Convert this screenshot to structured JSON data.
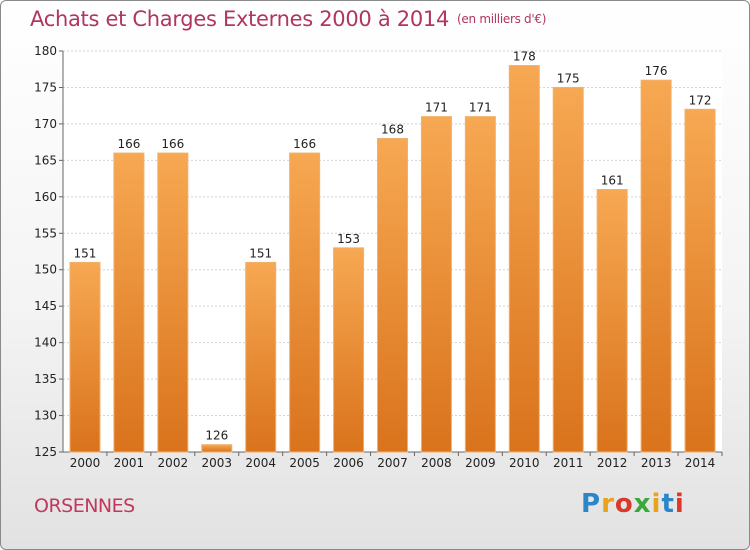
{
  "chart_data": {
    "type": "bar",
    "title": "Achats et Charges Externes 2000 à 2014",
    "unit_label": "(en milliers d'€)",
    "categories": [
      "2000",
      "2001",
      "2002",
      "2003",
      "2004",
      "2005",
      "2006",
      "2007",
      "2008",
      "2009",
      "2010",
      "2011",
      "2012",
      "2013",
      "2014"
    ],
    "values": [
      151,
      166,
      166,
      126,
      151,
      166,
      153,
      168,
      171,
      171,
      178,
      175,
      161,
      176,
      172
    ],
    "ylim": [
      125,
      180
    ],
    "yticks": [
      125,
      130,
      135,
      140,
      145,
      150,
      155,
      160,
      165,
      170,
      175,
      180
    ],
    "grid": true,
    "bar_color": "#f08a2c"
  },
  "location": "ORSENNES",
  "brand": {
    "letters": [
      "P",
      "r",
      "o",
      "x",
      "i",
      "t",
      "i"
    ],
    "colors": [
      "#2a86c8",
      "#e8a21c",
      "#d93a2c",
      "#3aa83a",
      "#e8a21c",
      "#2a86c8",
      "#d93a2c"
    ]
  }
}
